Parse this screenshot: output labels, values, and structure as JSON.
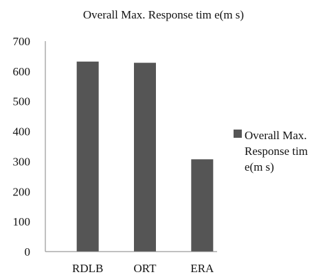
{
  "chart_data": {
    "type": "bar",
    "title": "Overall Max. Response tim e(m s)",
    "categories": [
      "RDLB",
      "ORT",
      "ERA"
    ],
    "series": [
      {
        "name": "Overall Max. Response tim e(m s)",
        "values": [
          632,
          628,
          307
        ]
      }
    ],
    "xlabel": "",
    "ylabel": "",
    "ylim": [
      0,
      700
    ],
    "yticks": [
      0,
      100,
      200,
      300,
      400,
      500,
      600,
      700
    ],
    "grid": false,
    "legend_position": "right",
    "colors": {
      "bar": "#555555",
      "axis": "#808080"
    }
  }
}
